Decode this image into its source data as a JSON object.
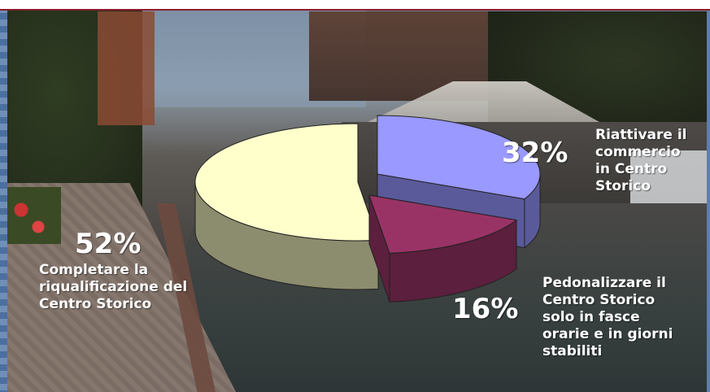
{
  "chart_data": {
    "type": "pie",
    "style": "3d-exploded",
    "slices": [
      {
        "label": "Riattivare il commercio in Centro Storico",
        "value": 32,
        "value_label": "32%",
        "top_color": "#9999ff",
        "side_color": "#5a5a9a"
      },
      {
        "label": "Pedonalizzare il Centro Storico solo in fasce orarie e in giorni stabiliti",
        "value": 16,
        "value_label": "16%",
        "top_color": "#993366",
        "side_color": "#5c1f3d"
      },
      {
        "label": "Completare la riqualificazione del Centro Storico",
        "value": 52,
        "value_label": "52%",
        "top_color": "#ffffcc",
        "side_color": "#8c8c6e"
      }
    ]
  },
  "labels": {
    "slice_0": [
      "Riattivare il",
      "commercio",
      "in Centro",
      "Storico"
    ],
    "slice_1": [
      "Pedonalizzare il",
      "Centro Storico",
      "solo in fasce",
      "orarie e in giorni",
      "stabiliti"
    ],
    "slice_2": [
      "Completare la",
      "riqualificazione del",
      "Centro Storico"
    ]
  },
  "colors": {
    "label_text": "#ffffff",
    "top_border": "#8c1c2c",
    "frame_blue": "#4b6f9e"
  }
}
